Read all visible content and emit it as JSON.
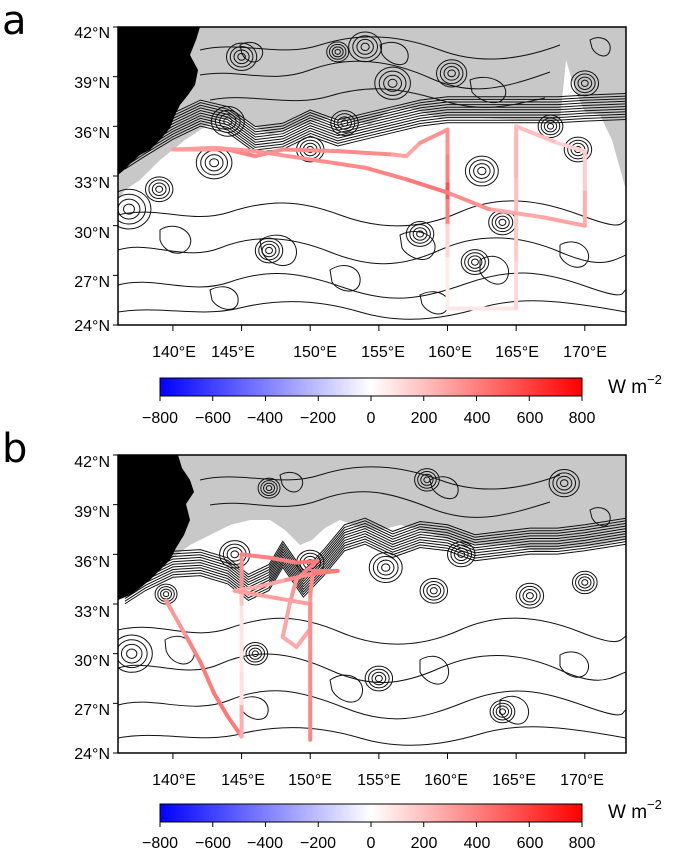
{
  "panels": [
    {
      "letter": "a",
      "lat_labels": [
        "42°N",
        "39°N",
        "36°N",
        "33°N",
        "30°N",
        "27°N",
        "24°N"
      ],
      "lon_labels": [
        "140°E",
        "145°E",
        "150°E",
        "155°E",
        "160°E",
        "165°E",
        "170°E"
      ],
      "lon_range": [
        136,
        173
      ],
      "lat_range": [
        24,
        42
      ],
      "kuroshio_axis": [
        [
          136.5,
          34.2
        ],
        [
          138,
          35.0
        ],
        [
          140,
          36.0
        ],
        [
          142,
          36.8
        ],
        [
          144,
          36.4
        ],
        [
          146,
          35.2
        ],
        [
          148,
          35.4
        ],
        [
          150,
          36.2
        ],
        [
          152,
          35.6
        ],
        [
          154,
          36.0
        ],
        [
          156,
          36.4
        ],
        [
          158,
          36.8
        ],
        [
          160,
          37.0
        ],
        [
          162,
          37.0
        ],
        [
          164,
          37.0
        ],
        [
          166,
          37.0
        ],
        [
          168,
          37.0
        ],
        [
          170,
          37.1
        ],
        [
          173,
          37.2
        ]
      ],
      "eddies": [
        [
          136.8,
          31.0,
          1.6
        ],
        [
          139,
          32.2,
          1.0
        ],
        [
          143,
          33.8,
          1.3
        ],
        [
          144,
          36.3,
          1.2
        ],
        [
          150,
          34.6,
          1.0
        ],
        [
          152.5,
          36.2,
          1.0
        ],
        [
          156,
          38.6,
          1.3
        ],
        [
          160.3,
          39.2,
          1.1
        ],
        [
          162.5,
          33.3,
          1.2
        ],
        [
          164,
          30.2,
          1.0
        ],
        [
          169.5,
          34.6,
          1.0
        ],
        [
          145,
          40.2,
          1.1
        ],
        [
          154,
          40.8,
          1.2
        ],
        [
          170,
          38.6,
          1.0
        ],
        [
          158,
          29.5,
          1.0
        ],
        [
          147,
          28.5,
          1.0
        ],
        [
          162,
          27.8,
          1.0
        ],
        [
          167.5,
          36.0,
          0.9
        ],
        [
          152,
          40.5,
          0.8
        ]
      ],
      "track": [
        [
          140,
          34.6,
          240
        ],
        [
          144,
          34.6,
          360
        ],
        [
          146,
          34.2,
          420
        ],
        [
          148,
          34.6,
          300
        ],
        [
          152,
          34.5,
          400
        ],
        [
          156,
          34.3,
          320
        ],
        [
          157,
          34.2,
          260
        ],
        [
          158,
          35.0,
          300
        ],
        [
          160,
          35.8,
          380
        ],
        [
          160,
          34.2,
          300
        ],
        [
          160,
          32.5,
          500
        ],
        [
          160,
          31.5,
          600
        ],
        [
          160,
          30.0,
          200
        ],
        [
          160,
          28.0,
          60
        ],
        [
          160,
          26.0,
          50
        ],
        [
          160,
          25.0,
          60
        ],
        [
          165,
          25.0,
          100
        ],
        [
          165,
          28.0,
          150
        ],
        [
          165,
          31.0,
          180
        ],
        [
          165,
          33.0,
          220
        ],
        [
          165,
          36.0,
          240
        ],
        [
          168,
          35.0,
          160
        ],
        [
          170,
          34.5,
          120
        ],
        [
          170,
          32.0,
          200
        ],
        [
          170,
          30.0,
          300
        ],
        [
          167,
          30.5,
          280
        ],
        [
          163,
          31.0,
          260
        ],
        [
          160,
          32.0,
          450
        ],
        [
          157,
          32.8,
          400
        ],
        [
          154,
          33.5,
          380
        ],
        [
          150,
          34.0,
          350
        ],
        [
          146,
          34.5,
          330
        ],
        [
          143,
          34.7,
          320
        ],
        [
          140,
          34.6,
          300
        ]
      ]
    },
    {
      "letter": "b",
      "lat_labels": [
        "42°N",
        "39°N",
        "36°N",
        "33°N",
        "30°N",
        "27°N",
        "24°N"
      ],
      "lon_labels": [
        "140°E",
        "145°E",
        "150°E",
        "155°E",
        "160°E",
        "165°E",
        "170°E"
      ],
      "lon_range": [
        136,
        173
      ],
      "lat_range": [
        24,
        42
      ],
      "kuroshio_axis": [
        [
          136.5,
          33.8
        ],
        [
          138,
          34.6
        ],
        [
          140,
          35.4
        ],
        [
          142,
          35.5
        ],
        [
          144,
          35.0
        ],
        [
          145.5,
          34.0
        ],
        [
          147,
          34.6
        ],
        [
          148,
          36.0
        ],
        [
          149.5,
          34.2
        ],
        [
          151,
          35.5
        ],
        [
          152.5,
          37.0
        ],
        [
          154,
          37.4
        ],
        [
          156,
          36.6
        ],
        [
          158,
          37.2
        ],
        [
          160,
          37.0
        ],
        [
          162,
          36.4
        ],
        [
          164,
          36.6
        ],
        [
          166,
          36.8
        ],
        [
          168,
          36.8
        ],
        [
          170,
          37.0
        ],
        [
          173,
          37.4
        ]
      ],
      "eddies": [
        [
          137,
          30.0,
          1.5
        ],
        [
          139.5,
          33.6,
          0.8
        ],
        [
          144.5,
          36.0,
          1.1
        ],
        [
          150,
          35.5,
          1.0
        ],
        [
          155.5,
          35.2,
          1.2
        ],
        [
          159,
          33.8,
          1.0
        ],
        [
          161,
          36.0,
          1.0
        ],
        [
          168.5,
          40.3,
          1.1
        ],
        [
          166,
          33.5,
          1.0
        ],
        [
          170,
          34.3,
          0.9
        ],
        [
          146,
          30.0,
          0.9
        ],
        [
          155,
          28.5,
          1.0
        ],
        [
          164,
          26.5,
          0.9
        ],
        [
          147,
          40.0,
          0.8
        ],
        [
          158.5,
          40.5,
          0.9
        ]
      ],
      "track": [
        [
          139.5,
          33.2,
          280
        ],
        [
          141,
          31.0,
          380
        ],
        [
          142,
          29.5,
          400
        ],
        [
          143,
          27.6,
          420
        ],
        [
          144,
          26.2,
          440
        ],
        [
          145,
          25.0,
          400
        ],
        [
          145,
          27.0,
          120
        ],
        [
          145,
          29.0,
          80
        ],
        [
          145,
          31.0,
          70
        ],
        [
          145,
          33.0,
          90
        ],
        [
          145,
          34.0,
          280
        ],
        [
          145,
          36.0,
          420
        ],
        [
          147,
          35.8,
          380
        ],
        [
          149,
          35.5,
          420
        ],
        [
          150.5,
          35.6,
          440
        ],
        [
          149,
          34.5,
          360
        ],
        [
          148.5,
          33.0,
          300
        ],
        [
          148,
          31.0,
          280
        ],
        [
          149,
          30.4,
          260
        ],
        [
          150,
          31.5,
          300
        ],
        [
          150,
          33.5,
          350
        ],
        [
          150.2,
          35.0,
          380
        ],
        [
          152,
          35.0,
          420
        ],
        [
          150,
          34.8,
          400
        ],
        [
          148,
          34.4,
          300
        ],
        [
          146,
          34.0,
          260
        ],
        [
          144.5,
          33.8,
          240
        ],
        [
          150,
          33.0,
          360
        ],
        [
          150,
          30.0,
          360
        ],
        [
          150,
          27.0,
          380
        ],
        [
          150,
          24.8,
          380
        ]
      ]
    }
  ],
  "colorbar": {
    "ticks": [
      "−800",
      "−600",
      "−400",
      "−200",
      "0",
      "200",
      "400",
      "600",
      "800"
    ],
    "unit_main": "W m",
    "unit_exp": "−2",
    "range": [
      -800,
      800
    ],
    "colors": {
      "min": "#0000ff",
      "mid": "#ffffff",
      "max": "#ff0000"
    }
  },
  "colors": {
    "land": "#000000",
    "cold_region": "#c8c8c8",
    "contour": "#111111"
  }
}
